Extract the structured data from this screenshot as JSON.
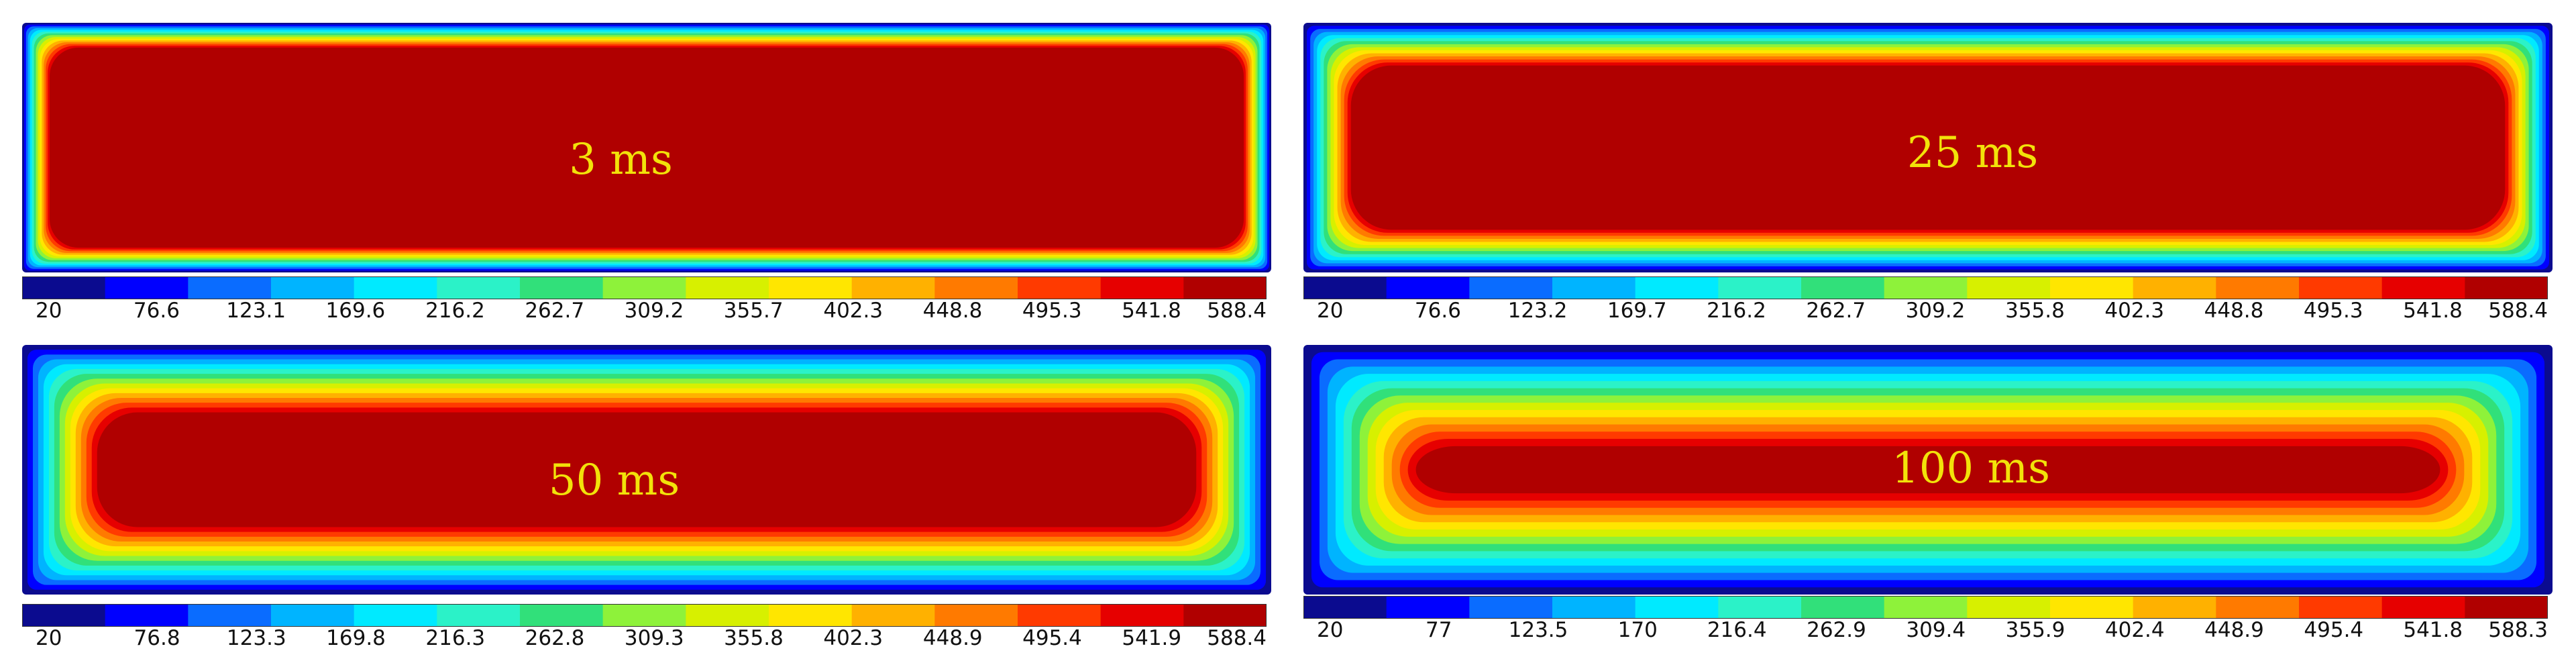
{
  "chart_data": [
    {
      "type": "heatmap",
      "label": "3 ms",
      "colorbar_ticks": [
        "20",
        "76.6",
        "123.1",
        "169.6",
        "216.2",
        "262.7",
        "309.2",
        "355.7",
        "402.3",
        "448.8",
        "495.3",
        "541.8",
        "588.4"
      ],
      "colorbar_range": [
        20,
        588.4
      ],
      "core_value": 588.4,
      "edge_value": 20,
      "boundary_layer_fraction": 0.022
    },
    {
      "type": "heatmap",
      "label": "25 ms",
      "colorbar_ticks": [
        "20",
        "76.6",
        "123.2",
        "169.7",
        "216.2",
        "262.7",
        "309.2",
        "355.8",
        "402.3",
        "448.8",
        "495.3",
        "541.8",
        "588.4"
      ],
      "colorbar_range": [
        20,
        588.4
      ],
      "core_value": 588.4,
      "edge_value": 20,
      "boundary_layer_fraction": 0.038
    },
    {
      "type": "heatmap",
      "label": "50 ms",
      "colorbar_ticks": [
        "20",
        "76.8",
        "123.3",
        "169.8",
        "216.3",
        "262.8",
        "309.3",
        "355.8",
        "402.3",
        "448.9",
        "495.4",
        "541.9",
        "588.4"
      ],
      "colorbar_range": [
        20,
        588.4
      ],
      "core_value": 588.4,
      "edge_value": 20,
      "boundary_layer_fraction": 0.06
    },
    {
      "type": "heatmap",
      "label": "100 ms",
      "colorbar_ticks": [
        "20",
        "77",
        "123.5",
        "170",
        "216.4",
        "262.9",
        "309.4",
        "355.9",
        "402.4",
        "448.9",
        "495.4",
        "541.8",
        "588.3"
      ],
      "colorbar_range": [
        20,
        588.3
      ],
      "core_value": 588.3,
      "edge_value": 20,
      "boundary_layer_fraction": 0.09
    }
  ],
  "colors": {
    "palette": [
      "#0b0b8f",
      "#0000ff",
      "#0a6cff",
      "#00b4ff",
      "#00eaff",
      "#2bf2c8",
      "#31e07a",
      "#8ef23a",
      "#d7f000",
      "#ffe600",
      "#ffb100",
      "#ff7a00",
      "#ff3a00",
      "#e60000",
      "#b00000"
    ],
    "core": "#b00000",
    "label": "#f2e20a"
  }
}
